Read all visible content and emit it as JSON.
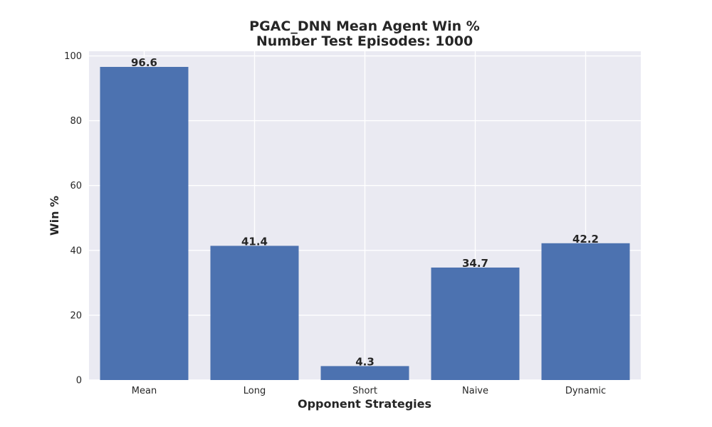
{
  "chart_data": {
    "type": "bar",
    "title_lines": [
      "PGAC_DNN Mean Agent Win %",
      "Number Test Episodes: 1000"
    ],
    "xlabel": "Opponent Strategies",
    "ylabel": "Win %",
    "categories": [
      "Mean",
      "Long",
      "Short",
      "Naive",
      "Dynamic"
    ],
    "values": [
      96.6,
      41.4,
      4.3,
      34.7,
      42.2
    ],
    "value_labels": [
      "96.6",
      "41.4",
      "4.3",
      "34.7",
      "42.2"
    ],
    "yticks": [
      0,
      20,
      40,
      60,
      80,
      100
    ],
    "ytick_labels": [
      "0",
      "20",
      "40",
      "60",
      "80",
      "100"
    ],
    "ylim": [
      0,
      101.43
    ],
    "grid": true,
    "legend": "none",
    "colors": {
      "bar": "#4c72b0",
      "plot_background": "#eaeaf2",
      "grid": "#ffffff",
      "text": "#262626"
    }
  }
}
